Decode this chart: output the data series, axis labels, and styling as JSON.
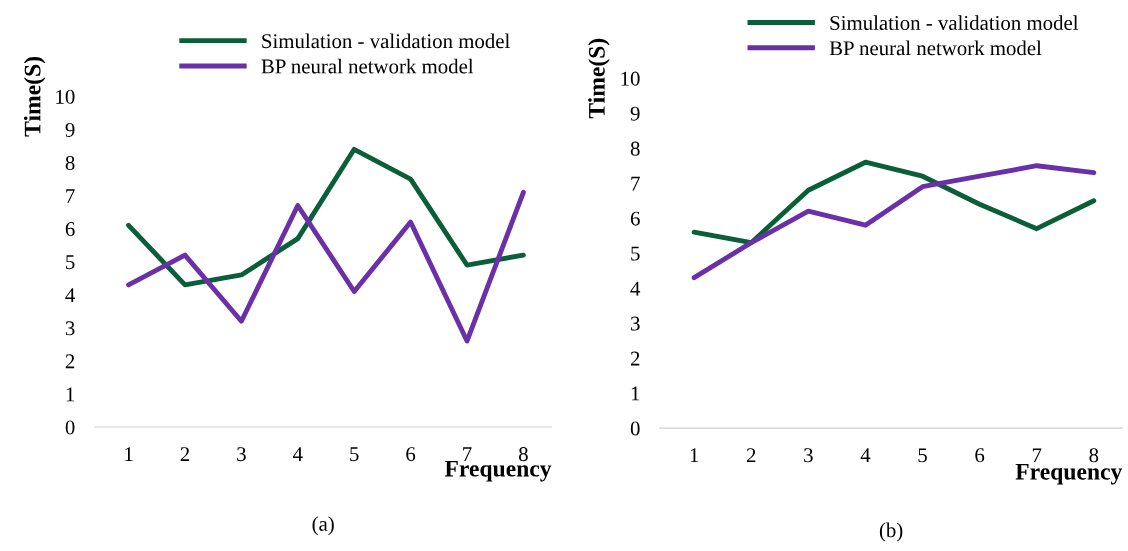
{
  "chart_data": [
    {
      "type": "line",
      "categories": [
        "1",
        "2",
        "3",
        "4",
        "5",
        "6",
        "7",
        "8"
      ],
      "xlabel": "Frequency",
      "ylabel": "Time(S)",
      "ylim": [
        0,
        10
      ],
      "yticks": [
        0,
        1,
        2,
        3,
        4,
        5,
        6,
        7,
        8,
        9,
        10
      ],
      "legend": "top",
      "annotations": [
        "(a)"
      ],
      "series": [
        {
          "name": "Simulation - validation model",
          "color": "#0b5e3a",
          "values": [
            6.1,
            4.3,
            4.6,
            5.7,
            8.4,
            7.5,
            4.9,
            5.2
          ]
        },
        {
          "name": "BP neural network model",
          "color": "#6a30a8",
          "values": [
            4.3,
            5.2,
            3.2,
            6.7,
            4.1,
            6.2,
            2.6,
            7.1
          ]
        }
      ]
    },
    {
      "type": "line",
      "categories": [
        "1",
        "2",
        "3",
        "4",
        "5",
        "6",
        "7",
        "8"
      ],
      "xlabel": "Frequency",
      "ylabel": "Time(S)",
      "ylim": [
        0,
        10
      ],
      "yticks": [
        0,
        1,
        2,
        3,
        4,
        5,
        6,
        7,
        8,
        9,
        10
      ],
      "legend": "top",
      "annotations": [
        "(b)"
      ],
      "series": [
        {
          "name": "Simulation - validation model",
          "color": "#0b5e3a",
          "values": [
            5.6,
            5.3,
            6.8,
            7.6,
            7.2,
            6.4,
            5.7,
            6.5
          ]
        },
        {
          "name": "BP neural network model",
          "color": "#6a30a8",
          "values": [
            4.3,
            5.3,
            6.2,
            5.8,
            6.9,
            7.2,
            7.5,
            7.3
          ]
        }
      ]
    }
  ]
}
